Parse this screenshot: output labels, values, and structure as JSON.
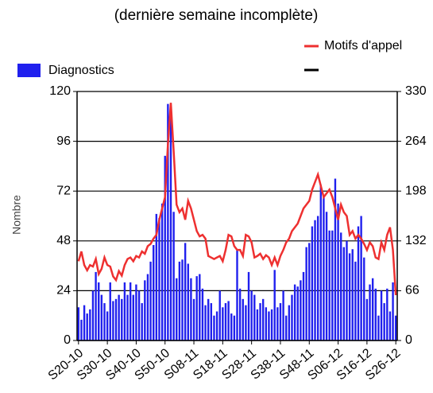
{
  "chart_data": {
    "type": "combo",
    "title": "(dernière semaine incomplète)",
    "y_label": "Nombre",
    "categories": [
      "S20-10",
      null,
      null,
      null,
      null,
      null,
      null,
      null,
      null,
      null,
      "S30-10",
      null,
      null,
      null,
      null,
      null,
      null,
      null,
      null,
      null,
      "S40-10",
      null,
      null,
      null,
      null,
      null,
      null,
      null,
      null,
      null,
      "S50-10",
      null,
      null,
      null,
      null,
      null,
      null,
      null,
      null,
      null,
      "S08-11",
      null,
      null,
      null,
      null,
      null,
      null,
      null,
      null,
      null,
      "S18-11",
      null,
      null,
      null,
      null,
      null,
      null,
      null,
      null,
      null,
      "S28-11",
      null,
      null,
      null,
      null,
      null,
      null,
      null,
      null,
      null,
      "S38-11",
      null,
      null,
      null,
      null,
      null,
      null,
      null,
      null,
      null,
      "S48-11",
      null,
      null,
      null,
      null,
      null,
      null,
      null,
      null,
      null,
      "S06-12",
      null,
      null,
      null,
      null,
      null,
      null,
      null,
      null,
      null,
      "S16-12",
      null,
      null,
      null,
      null,
      null,
      null,
      null,
      null,
      null,
      "S26-12"
    ],
    "ylim": [
      0,
      120
    ],
    "yticks": [
      0,
      24,
      48,
      72,
      96,
      120
    ],
    "y2lim": [
      0,
      330
    ],
    "y2ticks": [
      0,
      66,
      132,
      198,
      264,
      330
    ],
    "grid": true,
    "series": [
      {
        "name": "Diagnostics",
        "type": "bar",
        "color": "#2020ee",
        "values": [
          16,
          10,
          17,
          13,
          15,
          24,
          33,
          28,
          22,
          18,
          14,
          28,
          19,
          20,
          22,
          20,
          28,
          22,
          28,
          22,
          27,
          24,
          18,
          29,
          32,
          38,
          46,
          61,
          59,
          66,
          89,
          114,
          113,
          62,
          30,
          38,
          39,
          47,
          37,
          30,
          20,
          31,
          32,
          25,
          17,
          20,
          18,
          12,
          14,
          24,
          16,
          18,
          19,
          13,
          12,
          44,
          25,
          20,
          17,
          33,
          24,
          22,
          15,
          18,
          20,
          16,
          14,
          15,
          34,
          16,
          18,
          24,
          12,
          17,
          22,
          27,
          26,
          29,
          33,
          45,
          47,
          55,
          58,
          60,
          75,
          70,
          62,
          53,
          53,
          78,
          66,
          52,
          45,
          48,
          42,
          44,
          38,
          55,
          60,
          40,
          20,
          27,
          30,
          25,
          12,
          24,
          18,
          25,
          14,
          28,
          12
        ]
      },
      {
        "name": "Motifs d'appel",
        "type": "line",
        "axis": "y2",
        "color": "#ee3030",
        "values": [
          105,
          118,
          100,
          93,
          100,
          98,
          108,
          88,
          95,
          110,
          100,
          98,
          85,
          80,
          92,
          86,
          100,
          108,
          110,
          105,
          112,
          110,
          118,
          115,
          125,
          128,
          135,
          140,
          160,
          175,
          190,
          260,
          315,
          250,
          180,
          170,
          175,
          160,
          185,
          175,
          160,
          145,
          138,
          140,
          135,
          112,
          110,
          108,
          110,
          112,
          105,
          120,
          140,
          138,
          125,
          120,
          120,
          112,
          140,
          138,
          130,
          110,
          112,
          115,
          108,
          113,
          110,
          100,
          110,
          100,
          112,
          120,
          130,
          135,
          145,
          150,
          155,
          165,
          175,
          180,
          185,
          200,
          210,
          220,
          205,
          190,
          195,
          200,
          190,
          175,
          160,
          180,
          170,
          165,
          140,
          145,
          135,
          140,
          135,
          128,
          120,
          130,
          125,
          110,
          108,
          130,
          120,
          140,
          150,
          120,
          60
        ]
      }
    ]
  }
}
